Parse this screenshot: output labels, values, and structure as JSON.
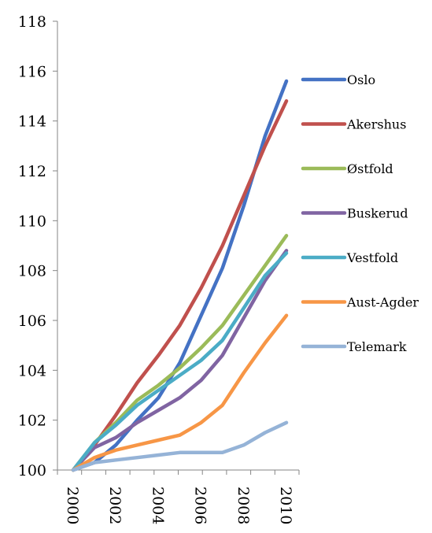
{
  "chart_data": {
    "type": "line",
    "title": "",
    "xlabel": "",
    "ylabel": "",
    "x": [
      2000,
      2001,
      2002,
      2003,
      2004,
      2005,
      2006,
      2007,
      2008,
      2009,
      2010
    ],
    "x_tick_labels": [
      "2000",
      "2002",
      "2004",
      "2006",
      "2008",
      "2010"
    ],
    "y_tick_labels": [
      "100",
      "102",
      "104",
      "106",
      "108",
      "110",
      "112",
      "114",
      "116",
      "118"
    ],
    "xlim": [
      2000,
      2010
    ],
    "ylim": [
      100,
      118
    ],
    "grid": false,
    "legend_position": "right",
    "series": [
      {
        "name": "Oslo",
        "color": "#4472C4",
        "values": [
          100.0,
          100.3,
          101.0,
          102.0,
          102.9,
          104.3,
          106.2,
          108.1,
          110.6,
          113.4,
          115.6
        ]
      },
      {
        "name": "Akershus",
        "color": "#C0504D",
        "values": [
          100.0,
          101.0,
          102.2,
          103.5,
          104.6,
          105.8,
          107.3,
          109.0,
          111.0,
          113.0,
          114.8
        ]
      },
      {
        "name": "Østfold",
        "color": "#9BBB59",
        "values": [
          100.0,
          101.1,
          101.9,
          102.8,
          103.4,
          104.1,
          104.9,
          105.8,
          107.0,
          108.2,
          109.4
        ]
      },
      {
        "name": "Buskerud",
        "color": "#8064A2",
        "values": [
          100.0,
          100.9,
          101.3,
          101.9,
          102.4,
          102.9,
          103.6,
          104.6,
          106.1,
          107.6,
          108.8
        ]
      },
      {
        "name": "Vestfold",
        "color": "#4BACC6",
        "values": [
          100.0,
          101.1,
          101.8,
          102.6,
          103.2,
          103.8,
          104.4,
          105.2,
          106.5,
          107.8,
          108.7
        ]
      },
      {
        "name": "Aust-Agder",
        "color": "#F79646",
        "values": [
          100.0,
          100.5,
          100.8,
          101.0,
          101.2,
          101.4,
          101.9,
          102.6,
          103.9,
          105.1,
          106.2
        ]
      },
      {
        "name": "Telemark",
        "color": "#95B3D7",
        "values": [
          100.0,
          100.3,
          100.4,
          100.5,
          100.6,
          100.7,
          100.7,
          100.7,
          101.0,
          101.5,
          101.9
        ]
      }
    ]
  }
}
